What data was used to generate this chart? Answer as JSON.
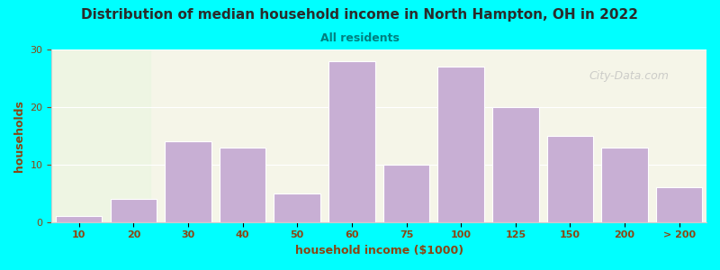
{
  "title": "Distribution of median household income in North Hampton, OH in 2022",
  "subtitle": "All residents",
  "xlabel": "household income ($1000)",
  "ylabel": "households",
  "background_color": "#00FFFF",
  "plot_bg_top": "#f5f5e8",
  "plot_bg_bottom": "#e8f5e8",
  "bar_color": "#c8afd4",
  "bar_edge_color": "#ffffff",
  "title_color": "#2b2b2b",
  "subtitle_color": "#008080",
  "axis_label_color": "#8B4513",
  "watermark": "City-Data.com",
  "categories": [
    "10",
    "20",
    "30",
    "40",
    "50",
    "60",
    "75",
    "100",
    "125",
    "150",
    "200",
    "> 200"
  ],
  "values": [
    1,
    4,
    14,
    13,
    5,
    28,
    10,
    27,
    20,
    15,
    13,
    6
  ],
  "ylim": [
    0,
    30
  ],
  "yticks": [
    0,
    10,
    20,
    30
  ]
}
